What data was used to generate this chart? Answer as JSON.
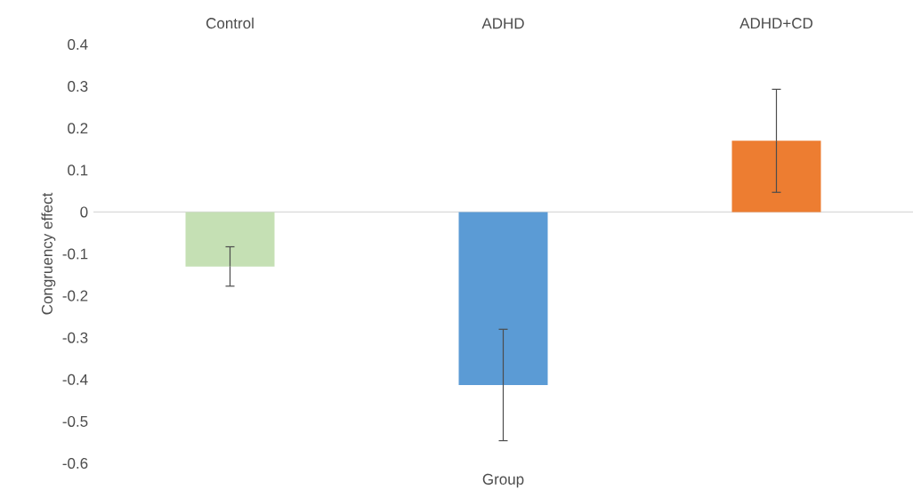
{
  "chart_data": {
    "type": "bar",
    "xlabel": "Group",
    "ylabel": "Congruency effect",
    "categories": [
      "Control",
      "ADHD",
      "ADHD+CD"
    ],
    "values": [
      -0.13,
      -0.413,
      0.17
    ],
    "colors": [
      "#c5e0b4",
      "#5b9bd5",
      "#ed7d31"
    ],
    "errors": [
      0.047,
      0.133,
      0.123
    ],
    "ylim": [
      -0.6,
      0.4
    ],
    "yticks": [
      -0.6,
      -0.5,
      -0.4,
      -0.3,
      -0.2,
      -0.1,
      0,
      0.1,
      0.2,
      0.3,
      0.4
    ],
    "ref_lines": [
      {
        "axis": "y",
        "value": 0,
        "color": "#d9d9d9"
      }
    ]
  }
}
